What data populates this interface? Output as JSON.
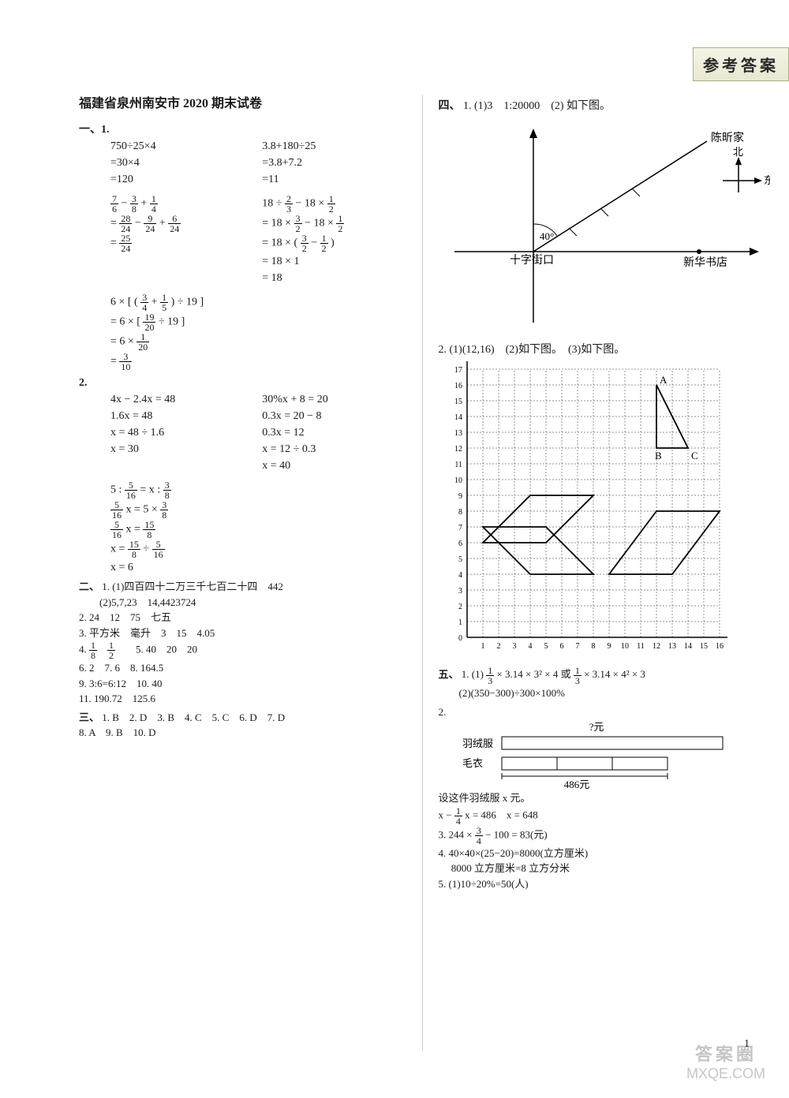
{
  "header_badge": "参考答案",
  "title": "福建省泉州南安市 2020 期末试卷",
  "section1": {
    "label": "一、1.",
    "pair1a": [
      "750÷25×4",
      "=30×4",
      "=120"
    ],
    "pair1b": [
      "3.8+180÷25",
      "=3.8+7.2",
      "=11"
    ],
    "pair2a_lines": [
      "7/6 − 3/8 + 1/4",
      "= 28/24 − 9/24 + 6/24",
      "= 25/24"
    ],
    "pair2b_lines": [
      "18 ÷ 2/3 − 18 × 1/2",
      "= 18 × 3/2 − 18 × 1/2",
      "= 18 × ( 3/2 − 1/2 )",
      "= 18 × 1",
      "= 18"
    ],
    "calc3": [
      "6 × [ ( 3/4 + 1/5 ) ÷ 19 ]",
      "= 6 × [ 19/20 ÷ 19 ]",
      "= 6 × 1/20",
      "= 3/10"
    ]
  },
  "section1_2": {
    "label": "2.",
    "eqA": [
      "4x − 2.4x = 48",
      "1.6x = 48",
      "x = 48 ÷ 1.6",
      "x = 30"
    ],
    "eqB": [
      "30%x + 8 = 20",
      "0.3x = 20 − 8",
      "0.3x = 12",
      "x = 12 ÷ 0.3",
      "x = 40"
    ],
    "eqC": [
      "5 : 5/16 = x : 3/8",
      "5/16 x = 5 × 3/8",
      "5/16 x = 15/8",
      "x = 15/8 ÷ 5/16",
      "x = 6"
    ]
  },
  "section2": {
    "label": "二、",
    "items": [
      "1. (1)四百四十二万三千七百二十四　442",
      "　　(2)5,7,23　14,4423724",
      "2. 24　12　75　七五",
      "3. 平方米　毫升　3　15　4.05",
      "4. 1/8　1/2　　5. 40　20　20",
      "6. 2　7. 6　8. 164.5",
      "9. 3:6=6:12　10. 40",
      "11. 190.72　125.6"
    ]
  },
  "section3": {
    "label": "三、",
    "line1": "1. B　2. D　3. B　4. C　5. C　6. D　7. D",
    "line2": "8. A　9. B　10. D"
  },
  "section4": {
    "label": "四、",
    "q1": "1. (1)3　1:20000　(2) 如下图。",
    "diagram1": {
      "labels": {
        "chen": "陈昕家",
        "north": "北",
        "east": "东",
        "angle": "40°",
        "cross": "十字街口",
        "bookstore": "新华书店"
      },
      "colors": {
        "line": "#000000"
      }
    },
    "q2": "2. (1)(12,16)　(2)如下图。　(3)如下图。",
    "grid": {
      "xmax": 16,
      "ymax": 17,
      "triangle": {
        "A": [
          12,
          16
        ],
        "B": [
          12,
          12
        ],
        "C": [
          14,
          12
        ],
        "label_A": "A",
        "label_B": "B",
        "label_C": "C"
      },
      "parallelogram1": [
        [
          1,
          7
        ],
        [
          5,
          7
        ],
        [
          8,
          4
        ],
        [
          4,
          4
        ]
      ],
      "parallelogram2": [
        [
          4,
          9
        ],
        [
          8,
          9
        ],
        [
          5,
          6
        ],
        [
          1,
          6
        ]
      ],
      "parallelogram3": [
        [
          9,
          4
        ],
        [
          13,
          4
        ],
        [
          16,
          8
        ],
        [
          12,
          8
        ]
      ],
      "line_color": "#000000",
      "grid_color": "#282828"
    }
  },
  "section5": {
    "label": "五、",
    "q1": "1. (1) 1/3 × 3.14 × 3² × 4 或 1/3 × 3.14 × 4² × 3",
    "q1b": "　　(2)(350−300)÷300×100%",
    "q2_label": "2.",
    "bar": {
      "top_q": "?元",
      "yurong": "羽绒服",
      "maoyi": "毛衣",
      "total": "486元"
    },
    "q2_text1": "设这件羽绒服 x 元。",
    "q2_text2": "x − 1/4 x = 486　x = 648",
    "q3": "3. 244 × 3/4 − 100 = 83(元)",
    "q4a": "4. 40×40×(25−20)=8000(立方厘米)",
    "q4b": "　 8000 立方厘米=8 立方分米",
    "q5": "5. (1)10÷20%=50(人)"
  },
  "page_number": "1",
  "watermark": {
    "line1": "答案圈",
    "line2": "MXQE.COM"
  }
}
